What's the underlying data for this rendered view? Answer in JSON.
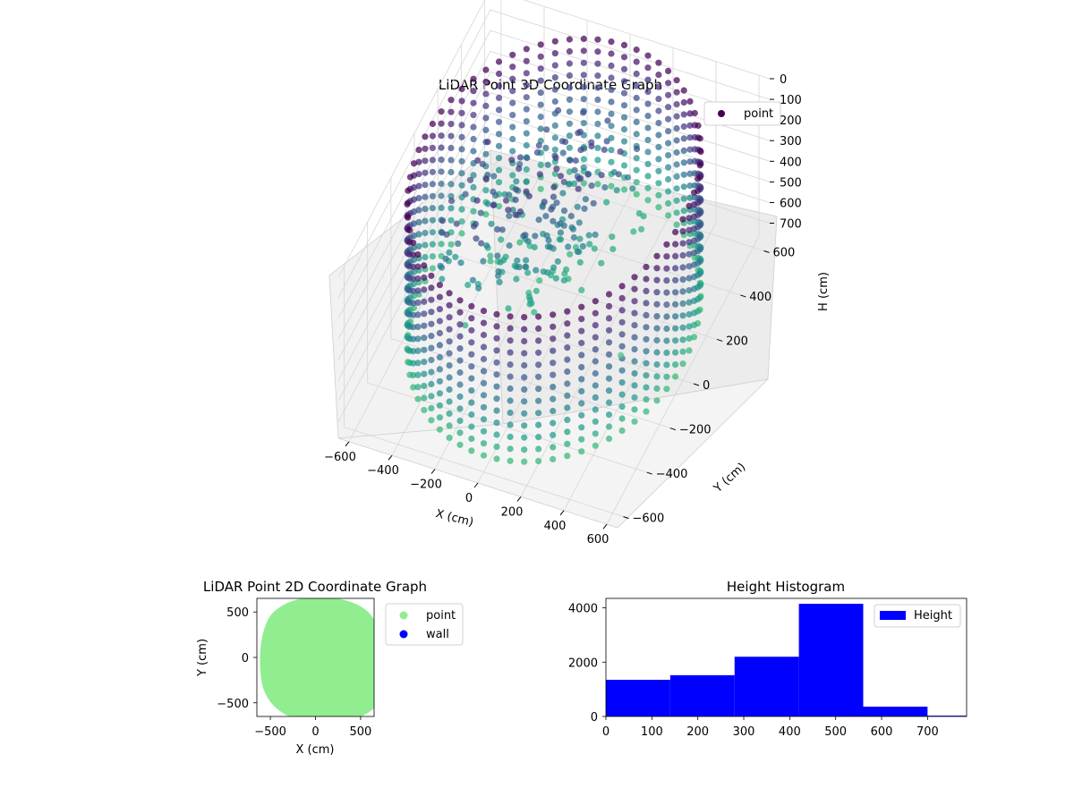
{
  "chart_data": [
    {
      "type": "scatter",
      "projection": "3d",
      "title": "LiDAR Point 3D Coordinate Graph",
      "xlabel": "X (cm)",
      "ylabel": "Y (cm)",
      "zlabel": "H (cm)",
      "xlim": [
        -650,
        650
      ],
      "ylim": [
        -650,
        650
      ],
      "zlim": [
        780,
        0
      ],
      "x_ticks": [
        -600,
        -400,
        -200,
        0,
        200,
        400,
        600
      ],
      "y_ticks": [
        -600,
        -400,
        -200,
        0,
        200,
        400,
        600
      ],
      "z_ticks": [
        0,
        100,
        200,
        300,
        400,
        500,
        600,
        700
      ],
      "z_inverted": true,
      "colormap": "viridis",
      "grid": true,
      "legend": {
        "position": "top-right",
        "entries": [
          {
            "label": "point",
            "color": "#440154"
          }
        ]
      },
      "series": [
        {
          "name": "point",
          "description_shape": "cylindrical wall of points, radius about 600 cm, heights 0 to 700 cm",
          "radius": 600,
          "height_range": [
            0,
            700
          ]
        }
      ]
    },
    {
      "type": "scatter",
      "title": "LiDAR Point 2D Coordinate Graph",
      "xlabel": "X (cm)",
      "ylabel": "Y (cm)",
      "xlim": [
        -650,
        650
      ],
      "ylim": [
        -650,
        650
      ],
      "x_ticks": [
        -500,
        0,
        500
      ],
      "y_ticks": [
        500,
        0,
        -500
      ],
      "legend": {
        "position": "outside-right",
        "entries": [
          {
            "label": "point",
            "color": "#90ee90"
          },
          {
            "label": "wall",
            "color": "#0000ff"
          }
        ]
      },
      "series": [
        {
          "name": "point",
          "color": "#90ee90",
          "shape": "disc",
          "radius": 620
        },
        {
          "name": "wall",
          "color": "#0000ff"
        }
      ]
    },
    {
      "type": "bar",
      "subtype": "histogram",
      "title": "Height Histogram",
      "xlabel": "",
      "ylabel": "",
      "xlim": [
        0,
        785
      ],
      "ylim": [
        0,
        4350
      ],
      "x_ticks": [
        0,
        100,
        200,
        300,
        400,
        500,
        600,
        700
      ],
      "y_ticks": [
        0,
        2000,
        4000
      ],
      "legend": {
        "position": "top-right",
        "entries": [
          {
            "label": "Height",
            "color": "#0000ff"
          }
        ]
      },
      "bins": [
        {
          "x0": 0,
          "x1": 140,
          "value": 1350
        },
        {
          "x0": 140,
          "x1": 280,
          "value": 1520
        },
        {
          "x0": 280,
          "x1": 420,
          "value": 2200
        },
        {
          "x0": 420,
          "x1": 560,
          "value": 4150
        },
        {
          "x0": 560,
          "x1": 700,
          "value": 360
        },
        {
          "x0": 700,
          "x1": 785,
          "value": 30
        }
      ],
      "color": "#0000ff"
    }
  ]
}
